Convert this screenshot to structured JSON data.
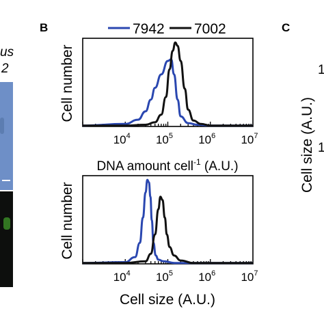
{
  "panels": {
    "A": {
      "label_fragment_1": "us",
      "label_fragment_2": "2"
    },
    "B": {
      "label": "B"
    },
    "C": {
      "label": "C",
      "axis_label_fragment": "Cell size (A.U.)",
      "tick_fragment_1": "1",
      "tick_fragment_2": "1"
    }
  },
  "colors": {
    "strain_7942": "#2a47b0",
    "strain_7002": "#111111",
    "axis": "#000000",
    "micro_top": "#6e8fc7",
    "micro_bottom": "#0d0f0d",
    "micro_green": "#3f9a2a"
  },
  "legend": [
    {
      "name": "7942",
      "color": "#2a47b0"
    },
    {
      "name": "7002",
      "color": "#111111"
    }
  ],
  "chart_data": [
    {
      "type": "line",
      "title": "",
      "xlabel": "DNA amount cell",
      "xlabel_sup": "-1",
      "xlabel_suffix": " (A.U.)",
      "ylabel": "Cell number",
      "xscale": "log",
      "xlim": [
        1000,
        10000000
      ],
      "xticks": [
        {
          "value": 10000,
          "base": "10",
          "exp": "4"
        },
        {
          "value": 100000,
          "base": "10",
          "exp": "5"
        },
        {
          "value": 1000000,
          "base": "10",
          "exp": "6"
        },
        {
          "value": 10000000,
          "base": "10",
          "exp": "7"
        }
      ],
      "ylim": [
        0,
        1.05
      ],
      "series": [
        {
          "name": "7942",
          "color": "#2a47b0",
          "x": [
            1000,
            10000,
            20000,
            30000,
            40000,
            50000,
            70000,
            100000,
            120000,
            140000,
            170000,
            200000,
            300000,
            500000,
            1000000,
            10000000
          ],
          "y": [
            0.01,
            0.03,
            0.08,
            0.18,
            0.32,
            0.46,
            0.62,
            0.78,
            0.8,
            0.62,
            0.32,
            0.12,
            0.04,
            0.02,
            0.01,
            0.01
          ]
        },
        {
          "name": "7002",
          "color": "#111111",
          "x": [
            1000,
            10000,
            30000,
            50000,
            70000,
            90000,
            110000,
            130000,
            150000,
            170000,
            200000,
            250000,
            300000,
            400000,
            600000,
            1000000,
            10000000
          ],
          "y": [
            0.01,
            0.01,
            0.02,
            0.05,
            0.14,
            0.35,
            0.68,
            0.9,
            1.0,
            0.96,
            0.78,
            0.45,
            0.2,
            0.07,
            0.03,
            0.01,
            0.01
          ]
        }
      ]
    },
    {
      "type": "line",
      "title": "",
      "xlabel": "Cell size (A.U.)",
      "ylabel": "Cell number",
      "xscale": "log",
      "xlim": [
        1000,
        10000000
      ],
      "xticks": [
        {
          "value": 10000,
          "base": "10",
          "exp": "4"
        },
        {
          "value": 100000,
          "base": "10",
          "exp": "5"
        },
        {
          "value": 1000000,
          "base": "10",
          "exp": "6"
        },
        {
          "value": 10000000,
          "base": "10",
          "exp": "7"
        }
      ],
      "ylim": [
        0,
        1.05
      ],
      "series": [
        {
          "name": "7942",
          "color": "#2a47b0",
          "x": [
            1000,
            10000,
            17000,
            22000,
            26000,
            30000,
            33000,
            36000,
            39000,
            42000,
            46000,
            52000,
            60000,
            80000,
            150000,
            10000000
          ],
          "y": [
            0.01,
            0.02,
            0.08,
            0.25,
            0.55,
            0.85,
            1.0,
            0.97,
            0.8,
            0.52,
            0.25,
            0.1,
            0.05,
            0.03,
            0.01,
            0.01
          ]
        },
        {
          "name": "7002",
          "color": "#111111",
          "x": [
            1000,
            10000,
            30000,
            40000,
            50000,
            60000,
            67000,
            75000,
            85000,
            95000,
            110000,
            140000,
            200000,
            400000,
            10000000
          ],
          "y": [
            0.01,
            0.01,
            0.03,
            0.12,
            0.35,
            0.65,
            0.8,
            0.76,
            0.55,
            0.35,
            0.2,
            0.1,
            0.04,
            0.01,
            0.01
          ]
        }
      ]
    }
  ]
}
